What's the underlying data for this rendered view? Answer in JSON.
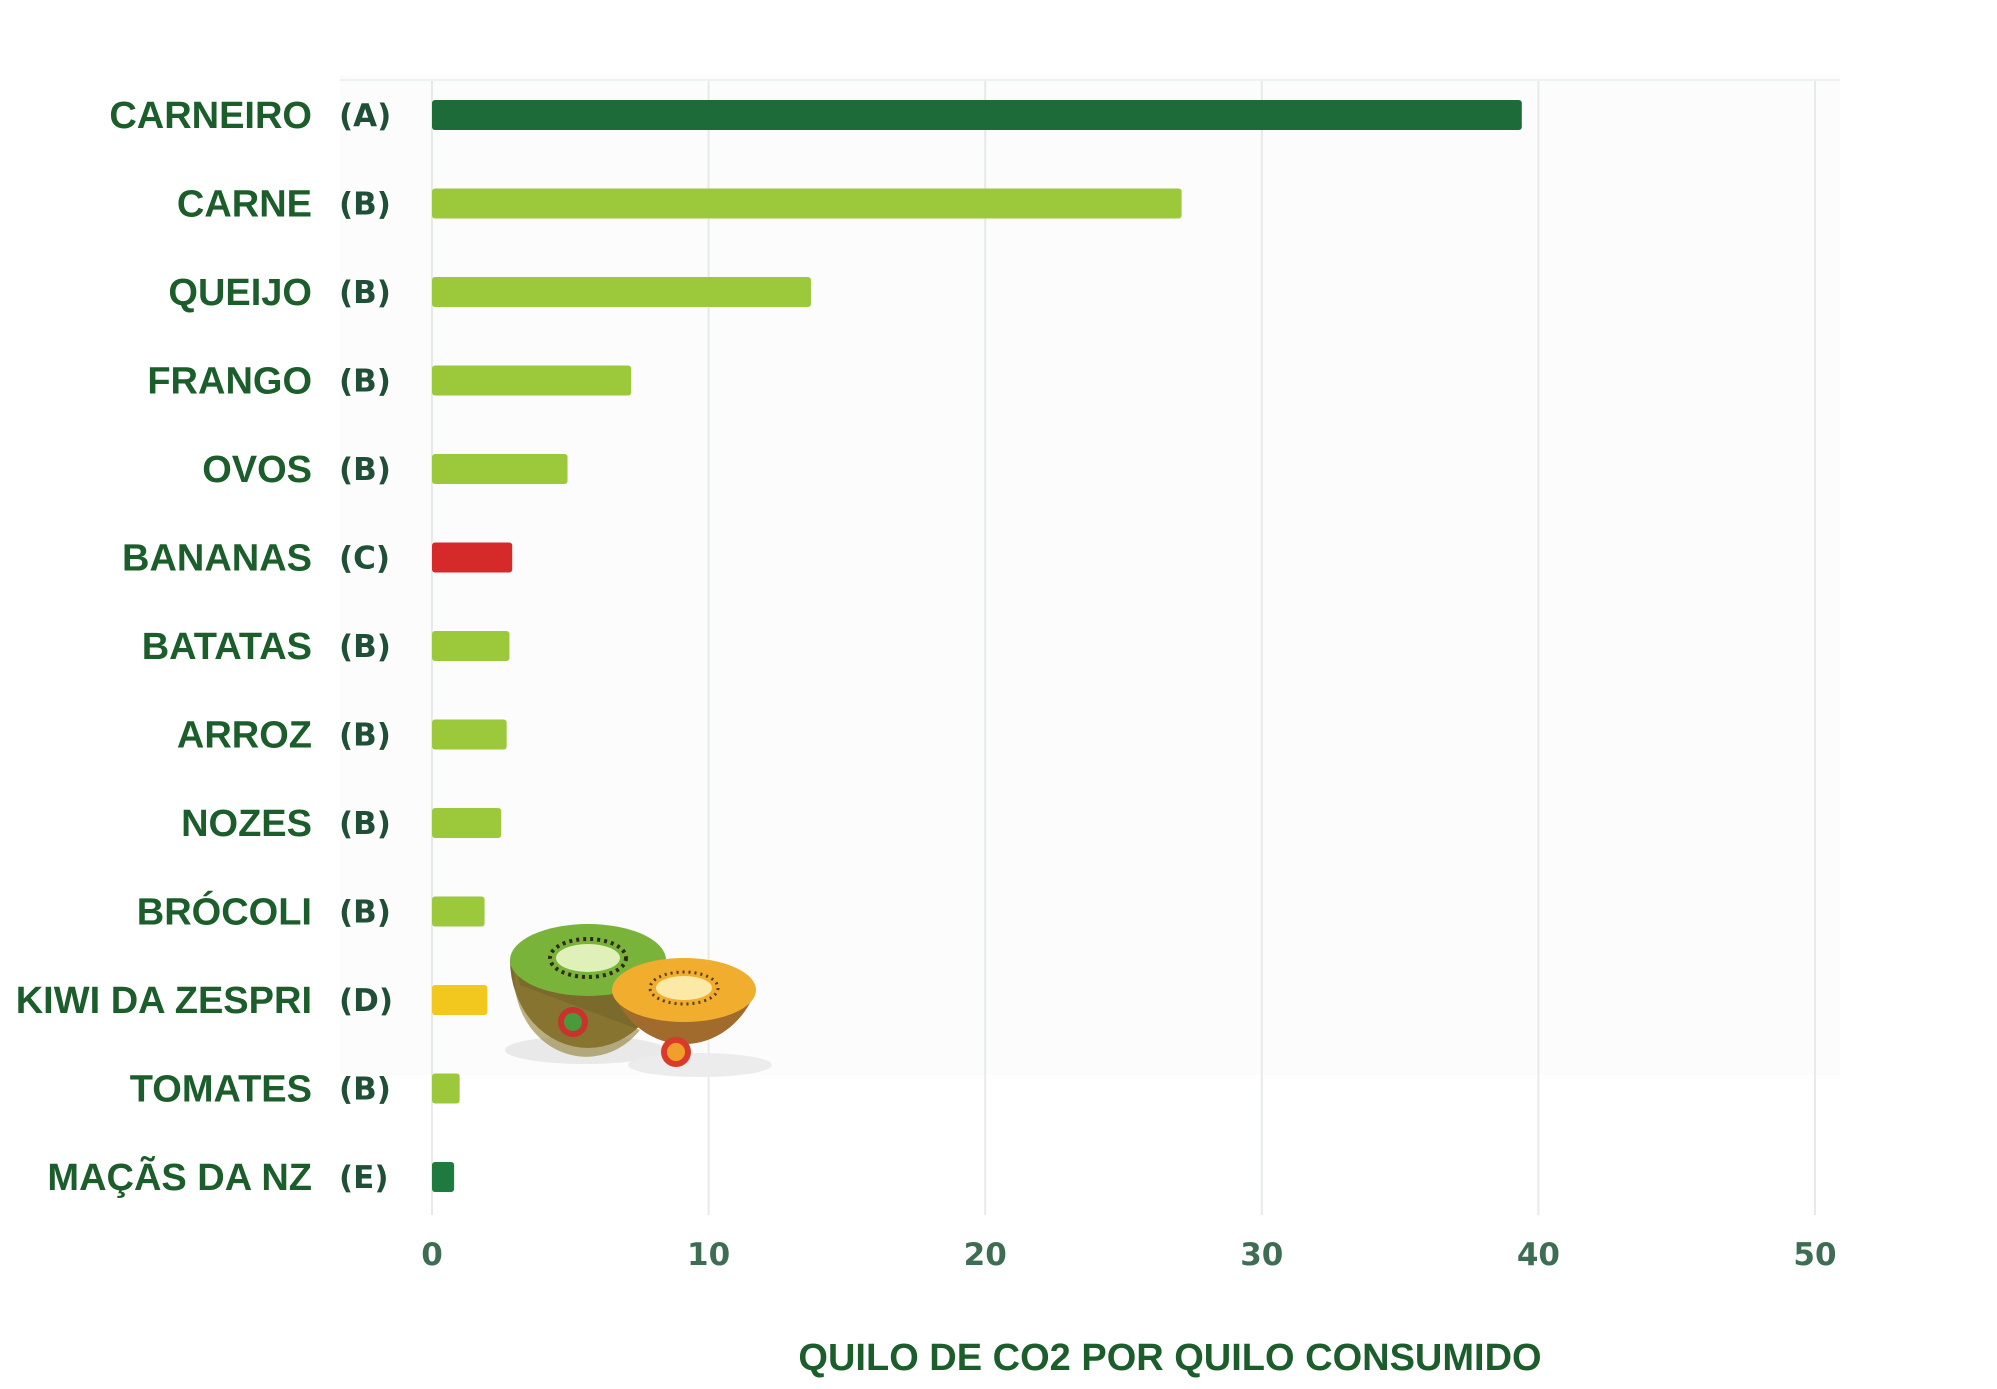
{
  "chart_data": {
    "type": "bar",
    "orientation": "horizontal",
    "categories": [
      "CARNEIRO",
      "CARNE",
      "QUEIJO",
      "FRANGO",
      "OVOS",
      "BANANAS",
      "BATATAS",
      "ARROZ",
      "NOZES",
      "BRÓCOLI",
      "KIWI DA ZESPRI",
      "TOMATES",
      "MAÇÃS DA NZ"
    ],
    "grades": [
      "(A)",
      "(B)",
      "(B)",
      "(B)",
      "(B)",
      "(C)",
      "(B)",
      "(B)",
      "(B)",
      "(B)",
      "(D)",
      "(B)",
      "(E)"
    ],
    "values": [
      39.4,
      27.1,
      13.7,
      7.2,
      4.9,
      2.9,
      2.8,
      2.7,
      2.5,
      1.9,
      2.0,
      1.0,
      0.8
    ],
    "bar_colors": [
      "#1e6b3a",
      "#9cc93c",
      "#9cc93c",
      "#9cc93c",
      "#9cc93c",
      "#d62a2a",
      "#9cc93c",
      "#9cc93c",
      "#9cc93c",
      "#9cc93c",
      "#f2c81f",
      "#9cc93c",
      "#1e7a3e"
    ],
    "xlim": [
      0,
      50
    ],
    "x_ticks": [
      "0",
      "10",
      "20",
      "30",
      "40",
      "50"
    ],
    "xlabel": "QUILO DE CO2 POR QUILO CONSUMIDO",
    "ylabel": "",
    "title": "",
    "grid": true
  },
  "illustration": {
    "name": "kiwi-halves-illustration",
    "colors": {
      "green_skin": "#6b5a26",
      "green_flesh": "#7bb536",
      "gold_flesh": "#f1b030",
      "gold_skin": "#9a6a2b"
    }
  }
}
